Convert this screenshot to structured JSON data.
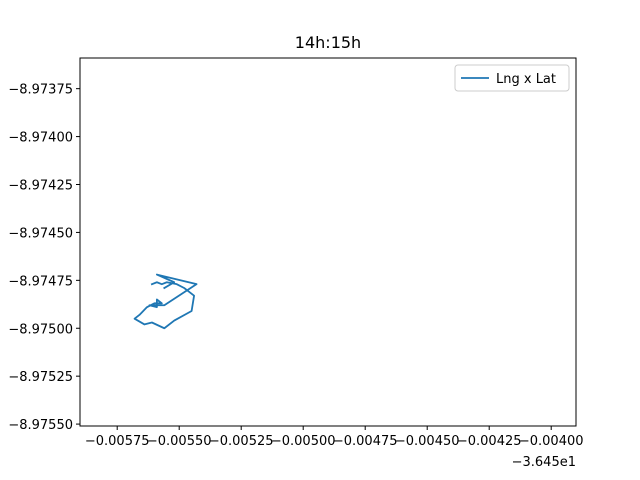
{
  "chart_data": {
    "type": "line",
    "title": "14h:15h",
    "xlabel": "",
    "ylabel": "",
    "x_offset_label": "−3.645e1",
    "xlim": [
      -0.0059,
      -0.0039
    ],
    "ylim": [
      -8.97551,
      -8.97359
    ],
    "x_ticks": [
      -0.00575,
      -0.0055,
      -0.00525,
      -0.005,
      -0.00475,
      -0.0045,
      -0.00425,
      -0.004
    ],
    "x_tick_labels": [
      "−0.00575",
      "−0.00550",
      "−0.00525",
      "−0.00500",
      "−0.00475",
      "−0.00450",
      "−0.00425",
      "−0.00400"
    ],
    "y_ticks": [
      -8.97375,
      -8.974,
      -8.97425,
      -8.9745,
      -8.97475,
      -8.975,
      -8.97525,
      -8.9755
    ],
    "y_tick_labels": [
      "−8.97375",
      "−8.97400",
      "−8.97425",
      "−8.97450",
      "−8.97475",
      "−8.97500",
      "−8.97525",
      "−8.97550"
    ],
    "grid": false,
    "legend_position": "top-right",
    "series": [
      {
        "name": "Lng x Lat",
        "color": "#1f77b4",
        "x": [
          -0.00561,
          -0.00559,
          -0.00557,
          -0.00555,
          -0.00551,
          -0.00548,
          -0.00546,
          -0.00544,
          -0.00545,
          -0.00545,
          -0.00552,
          -0.00556,
          -0.00561,
          -0.00564,
          -0.00568,
          -0.00566,
          -0.00563,
          -0.0056,
          -0.00557,
          -0.00559,
          -0.00559,
          -0.00562,
          -0.00556,
          -0.00543,
          -0.00559,
          -0.00552,
          -0.00556
        ],
        "y": [
          -8.97477,
          -8.97476,
          -8.97477,
          -8.97476,
          -8.97477,
          -8.97479,
          -8.97481,
          -8.97483,
          -8.97491,
          -8.97491,
          -8.97496,
          -8.975,
          -8.97497,
          -8.97498,
          -8.97495,
          -8.97493,
          -8.97489,
          -8.97487,
          -8.97487,
          -8.97485,
          -8.97489,
          -8.97488,
          -8.97488,
          -8.97477,
          -8.97472,
          -8.97476,
          -8.97479
        ]
      }
    ]
  }
}
